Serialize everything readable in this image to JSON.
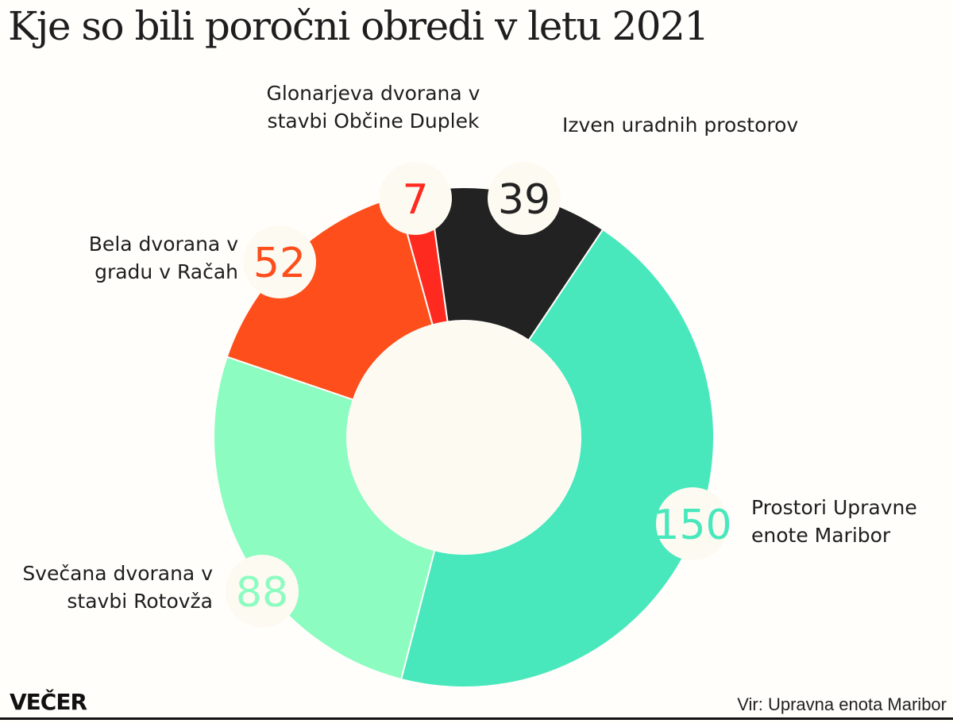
{
  "title": "Kje so bili poročni obredi v letu 2021",
  "chart_data": {
    "type": "pie",
    "variant": "donut",
    "title": "Kje so bili poročni obredi v letu 2021",
    "slices": [
      {
        "label": "Izven uradnih prostorov",
        "value": 39,
        "color": "#222222",
        "text_color": "#222222"
      },
      {
        "label": "Prostori Upravne enote Maribor",
        "value": 150,
        "color": "#48e8bc",
        "text_color": "#48e8bc"
      },
      {
        "label": "Svečana dvorana v stavbi Rotovža",
        "value": 88,
        "color": "#8cfcc0",
        "text_color": "#8cfcc0"
      },
      {
        "label": "Bela dvorana v gradu v Račah",
        "value": 52,
        "color": "#fd4e1c",
        "text_color": "#fd4e1c"
      },
      {
        "label": "Glonarjeva dvorana v stavbi Občine Duplek",
        "value": 7,
        "color": "#fe2a1f",
        "text_color": "#fe2a1f"
      }
    ]
  },
  "source": "Vir: Upravna enota Maribor",
  "logo": "VEČER"
}
